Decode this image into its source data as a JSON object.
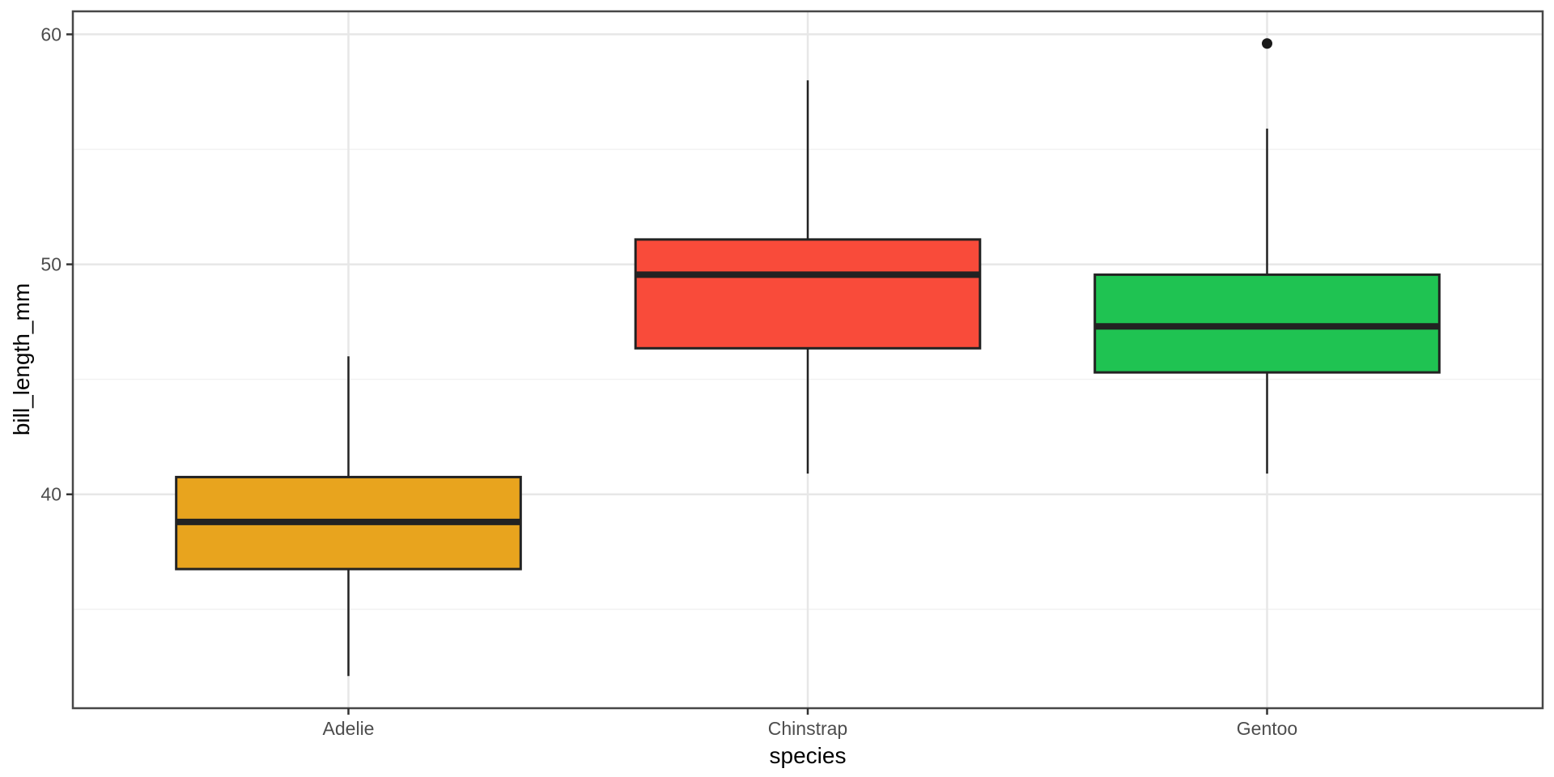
{
  "figure": {
    "background": "#FFFFFF"
  },
  "chart_data": {
    "type": "boxplot",
    "title": "",
    "xlabel": "species",
    "ylabel": "bill_length_mm",
    "categories": [
      "Adelie",
      "Chinstrap",
      "Gentoo"
    ],
    "ylim": [
      30.7,
      61.0
    ],
    "y_major_ticks": [
      40,
      50,
      60
    ],
    "y_minor_gridlines": [
      35,
      45,
      55
    ],
    "grid": "horizontal major+minor, vertical major at categories",
    "legend": "none",
    "boxes": [
      {
        "category": "Adelie",
        "fill": "#E8A41E",
        "whisker_low": 32.1,
        "q1": 36.75,
        "median": 38.8,
        "q3": 40.75,
        "whisker_high": 46.0,
        "outliers": []
      },
      {
        "category": "Chinstrap",
        "fill": "#F94B3A",
        "whisker_low": 40.9,
        "q1": 46.35,
        "median": 49.55,
        "q3": 51.08,
        "whisker_high": 58.0,
        "outliers": []
      },
      {
        "category": "Gentoo",
        "fill": "#1FC352",
        "whisker_low": 40.9,
        "q1": 45.3,
        "median": 47.3,
        "q3": 49.55,
        "whisker_high": 55.9,
        "outliers": [
          59.6
        ]
      }
    ],
    "colors": {
      "box_border": "#222222",
      "median": "#222222",
      "whisker": "#222222",
      "outlier": "#1A1A1A",
      "panel_border": "#474747",
      "grid_major": "#E7E7E7",
      "grid_minor": "#F2F2F2",
      "tick_mark": "#333333",
      "tick_label": "#4D4D4D",
      "axis_title": "#000000"
    }
  }
}
